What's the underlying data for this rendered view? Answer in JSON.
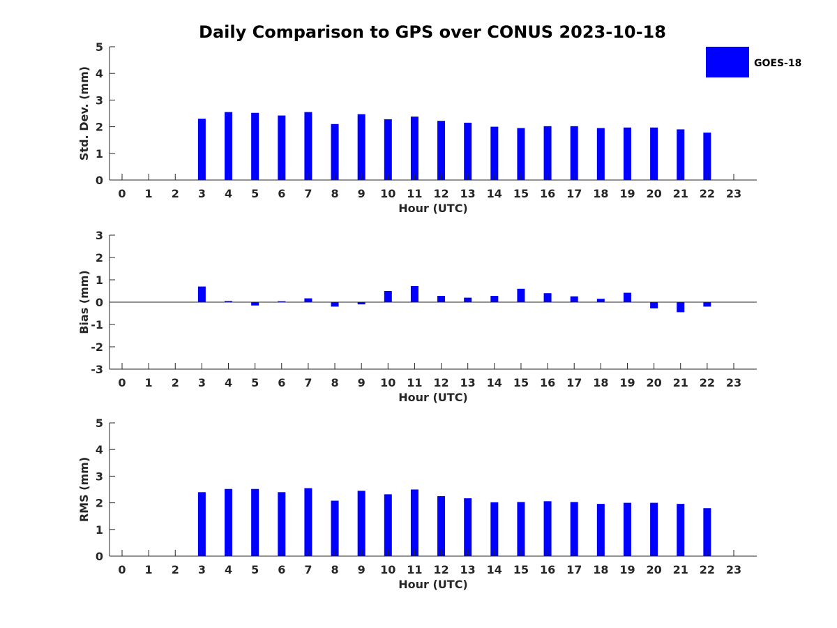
{
  "title": "Daily Comparison to GPS over CONUS 2023-10-18",
  "legend": {
    "label": "GOES-18",
    "color": "#0000ff"
  },
  "chart_data": [
    {
      "type": "bar",
      "xlabel": "Hour (UTC)",
      "ylabel": "Std. Dev. (mm)",
      "ylim": [
        0,
        5
      ],
      "yticks": [
        0,
        1,
        2,
        3,
        4,
        5
      ],
      "categories": [
        "0",
        "1",
        "2",
        "3",
        "4",
        "5",
        "6",
        "7",
        "8",
        "9",
        "10",
        "11",
        "12",
        "13",
        "14",
        "15",
        "16",
        "17",
        "18",
        "19",
        "20",
        "21",
        "22",
        "23"
      ],
      "series": [
        {
          "name": "GOES-18",
          "values": [
            null,
            null,
            null,
            2.3,
            2.55,
            2.52,
            2.42,
            2.55,
            2.1,
            2.47,
            2.28,
            2.38,
            2.22,
            2.15,
            2.0,
            1.95,
            2.02,
            2.02,
            1.95,
            1.97,
            1.97,
            1.9,
            1.78,
            null
          ]
        }
      ]
    },
    {
      "type": "bar",
      "xlabel": "Hour (UTC)",
      "ylabel": "Bias (mm)",
      "ylim": [
        -3,
        3
      ],
      "yticks": [
        -3,
        -2,
        -1,
        0,
        1,
        2,
        3
      ],
      "categories": [
        "0",
        "1",
        "2",
        "3",
        "4",
        "5",
        "6",
        "7",
        "8",
        "9",
        "10",
        "11",
        "12",
        "13",
        "14",
        "15",
        "16",
        "17",
        "18",
        "19",
        "20",
        "21",
        "22",
        "23"
      ],
      "series": [
        {
          "name": "GOES-18",
          "values": [
            null,
            null,
            null,
            0.7,
            0.05,
            -0.15,
            0.04,
            0.17,
            -0.2,
            -0.1,
            0.5,
            0.72,
            0.28,
            0.2,
            0.28,
            0.6,
            0.4,
            0.26,
            0.15,
            0.42,
            -0.28,
            -0.45,
            -0.2,
            null
          ]
        }
      ]
    },
    {
      "type": "bar",
      "xlabel": "Hour (UTC)",
      "ylabel": "RMS (mm)",
      "ylim": [
        0,
        5
      ],
      "yticks": [
        0,
        1,
        2,
        3,
        4,
        5
      ],
      "categories": [
        "0",
        "1",
        "2",
        "3",
        "4",
        "5",
        "6",
        "7",
        "8",
        "9",
        "10",
        "11",
        "12",
        "13",
        "14",
        "15",
        "16",
        "17",
        "18",
        "19",
        "20",
        "21",
        "22",
        "23"
      ],
      "series": [
        {
          "name": "GOES-18",
          "values": [
            null,
            null,
            null,
            2.4,
            2.52,
            2.52,
            2.4,
            2.55,
            2.08,
            2.45,
            2.32,
            2.5,
            2.25,
            2.17,
            2.02,
            2.03,
            2.06,
            2.03,
            1.96,
            2.0,
            2.0,
            1.96,
            1.8,
            null
          ]
        }
      ]
    }
  ]
}
